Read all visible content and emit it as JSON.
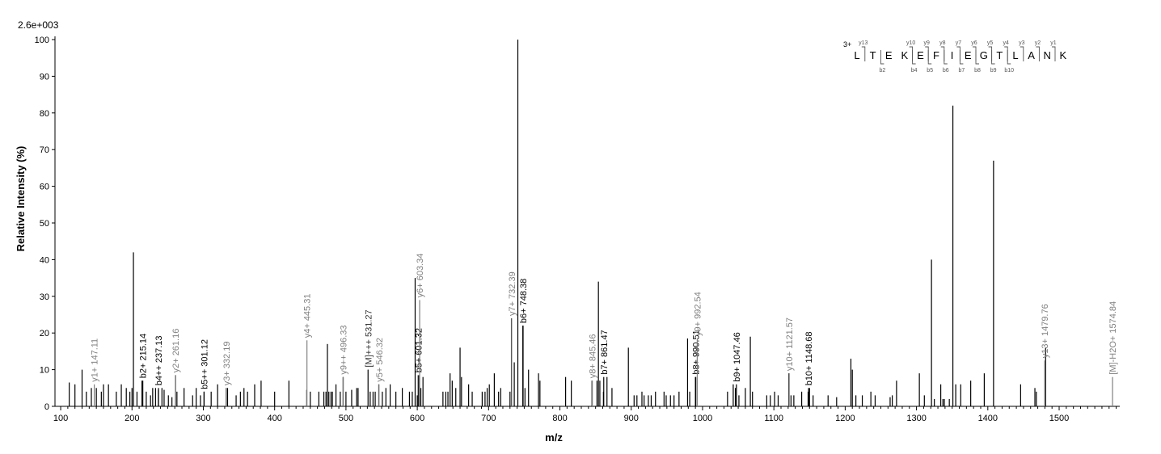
{
  "chart_data": {
    "type": "bar",
    "scale_label": "2.6e+003",
    "xlabel": "m/z",
    "ylabel": "Relative   Intensity (%)",
    "xlim": [
      92,
      1585
    ],
    "ylim": [
      0,
      100
    ],
    "x_ticks": [
      100,
      200,
      300,
      400,
      500,
      600,
      700,
      800,
      900,
      1000,
      1100,
      1200,
      1300,
      1400,
      1500
    ],
    "y_ticks": [
      0,
      10,
      20,
      30,
      40,
      50,
      60,
      70,
      80,
      90,
      100
    ],
    "peaks": [
      [
        112,
        6.5
      ],
      [
        120,
        6
      ],
      [
        130,
        10
      ],
      [
        136,
        4
      ],
      [
        143,
        5
      ],
      [
        150,
        5
      ],
      [
        157,
        4
      ],
      [
        160,
        6
      ],
      [
        167,
        6
      ],
      [
        178,
        4
      ],
      [
        185,
        6
      ],
      [
        192,
        5
      ],
      [
        197,
        4
      ],
      [
        200,
        5
      ],
      [
        202,
        42
      ],
      [
        207,
        4
      ],
      [
        214,
        7
      ],
      [
        220,
        4
      ],
      [
        226,
        3
      ],
      [
        229,
        5
      ],
      [
        233,
        5
      ],
      [
        237,
        4.5
      ],
      [
        242,
        5
      ],
      [
        245,
        4.5
      ],
      [
        251,
        3
      ],
      [
        256,
        2.5
      ],
      [
        261,
        8.5
      ],
      [
        263,
        4
      ],
      [
        273,
        5
      ],
      [
        285,
        3
      ],
      [
        290,
        5
      ],
      [
        296,
        3
      ],
      [
        301,
        4
      ],
      [
        311,
        4
      ],
      [
        320,
        6
      ],
      [
        332,
        5
      ],
      [
        334,
        5
      ],
      [
        346,
        3
      ],
      [
        352,
        4
      ],
      [
        357,
        5
      ],
      [
        362,
        4
      ],
      [
        372,
        6
      ],
      [
        381,
        7
      ],
      [
        400,
        4
      ],
      [
        420,
        7
      ],
      [
        445,
        4.5
      ],
      [
        450,
        4
      ],
      [
        462,
        4
      ],
      [
        469,
        4
      ],
      [
        472,
        4
      ],
      [
        474,
        17
      ],
      [
        476,
        4
      ],
      [
        479,
        4
      ],
      [
        481,
        4
      ],
      [
        486,
        6
      ],
      [
        492,
        4
      ],
      [
        496,
        8
      ],
      [
        500,
        4
      ],
      [
        508,
        4.5
      ],
      [
        515,
        5
      ],
      [
        517,
        5
      ],
      [
        531,
        10
      ],
      [
        534,
        4
      ],
      [
        538,
        4
      ],
      [
        541,
        4
      ],
      [
        546,
        6
      ],
      [
        551,
        4
      ],
      [
        556,
        5
      ],
      [
        562,
        6
      ],
      [
        570,
        4
      ],
      [
        579,
        5
      ],
      [
        589,
        4
      ],
      [
        593,
        4
      ],
      [
        597,
        35
      ],
      [
        600,
        3
      ],
      [
        603,
        8.5
      ],
      [
        605,
        5
      ],
      [
        608,
        8
      ],
      [
        636,
        4
      ],
      [
        640,
        4
      ],
      [
        643,
        4
      ],
      [
        646,
        9
      ],
      [
        649,
        7
      ],
      [
        654,
        5
      ],
      [
        660,
        16
      ],
      [
        662,
        8
      ],
      [
        672,
        6
      ],
      [
        677,
        4
      ],
      [
        691,
        4
      ],
      [
        695,
        4
      ],
      [
        698,
        5
      ],
      [
        701,
        6
      ],
      [
        708,
        9
      ],
      [
        714,
        4
      ],
      [
        717,
        5
      ],
      [
        730,
        4
      ],
      [
        732,
        24
      ],
      [
        736,
        12
      ],
      [
        741,
        100
      ],
      [
        748,
        22
      ],
      [
        751,
        5
      ],
      [
        756,
        10
      ],
      [
        770,
        9
      ],
      [
        772,
        7
      ],
      [
        808,
        8
      ],
      [
        816,
        7
      ],
      [
        845,
        7
      ],
      [
        852,
        7
      ],
      [
        854,
        34
      ],
      [
        856,
        7
      ],
      [
        861,
        4
      ],
      [
        866,
        8
      ],
      [
        873,
        5
      ],
      [
        896,
        16
      ],
      [
        904,
        3
      ],
      [
        908,
        3
      ],
      [
        915,
        4
      ],
      [
        918,
        3
      ],
      [
        924,
        3
      ],
      [
        928,
        3
      ],
      [
        934,
        4
      ],
      [
        946,
        4
      ],
      [
        949,
        3
      ],
      [
        955,
        3
      ],
      [
        960,
        3
      ],
      [
        967,
        4
      ],
      [
        979,
        18.5
      ],
      [
        982,
        4
      ],
      [
        990,
        8
      ],
      [
        1035,
        4
      ],
      [
        1043,
        6
      ],
      [
        1046,
        5
      ],
      [
        1051,
        3
      ],
      [
        1060,
        5
      ],
      [
        1067,
        19
      ],
      [
        1070,
        4
      ],
      [
        1090,
        3
      ],
      [
        1095,
        3
      ],
      [
        1101,
        4
      ],
      [
        1106,
        3
      ],
      [
        1121,
        9
      ],
      [
        1124,
        3
      ],
      [
        1128,
        3
      ],
      [
        1139,
        4
      ],
      [
        1148,
        4
      ],
      [
        1150,
        5
      ],
      [
        1155,
        3
      ],
      [
        1176,
        3
      ],
      [
        1188,
        2.5
      ],
      [
        1208,
        13
      ],
      [
        1210,
        10
      ],
      [
        1215,
        3
      ],
      [
        1224,
        3
      ],
      [
        1236,
        4
      ],
      [
        1242,
        3
      ],
      [
        1263,
        2.5
      ],
      [
        1266,
        3
      ],
      [
        1272,
        7
      ],
      [
        1304,
        9
      ],
      [
        1311,
        3
      ],
      [
        1321,
        40
      ],
      [
        1325,
        2
      ],
      [
        1334,
        6
      ],
      [
        1337,
        2
      ],
      [
        1339,
        2
      ],
      [
        1346,
        2
      ],
      [
        1351,
        82
      ],
      [
        1355,
        6
      ],
      [
        1362,
        6
      ],
      [
        1376,
        7
      ],
      [
        1395,
        9
      ],
      [
        1408,
        67
      ],
      [
        1446,
        6
      ],
      [
        1466,
        5
      ],
      [
        1468,
        4
      ],
      [
        1481,
        16
      ]
    ],
    "annotations": [
      {
        "x": 147.11,
        "y": 6,
        "label": "y1+ 147.11",
        "ion": "y"
      },
      {
        "x": 215.14,
        "y": 7,
        "label": "b2+ 215.14",
        "ion": "b"
      },
      {
        "x": 237.13,
        "y": 5,
        "label": "b4++ 237.13",
        "ion": "b"
      },
      {
        "x": 261.16,
        "y": 8.5,
        "label": "y2+ 261.16",
        "ion": "y"
      },
      {
        "x": 301.12,
        "y": 4,
        "label": "b5++ 301.12",
        "ion": "b"
      },
      {
        "x": 332.19,
        "y": 5,
        "label": "y3+ 332.19",
        "ion": "y"
      },
      {
        "x": 445.31,
        "y": 18,
        "label": "y4+ 445.31",
        "ion": "y"
      },
      {
        "x": 496.33,
        "y": 8,
        "label": "y9++ 496.33",
        "ion": "y"
      },
      {
        "x": 531.27,
        "y": 10,
        "label": "[M]+++ 531.27",
        "ion": "m"
      },
      {
        "x": 546.32,
        "y": 6,
        "label": "y5+ 546.32",
        "ion": "y"
      },
      {
        "x": 601.32,
        "y": 8.5,
        "label": "b5+ 601.32",
        "ion": "b"
      },
      {
        "x": 603.34,
        "y": 29,
        "label": "y6+ 603.34",
        "ion": "y"
      },
      {
        "x": 732.39,
        "y": 24,
        "label": "y7+ 732.39",
        "ion": "y"
      },
      {
        "x": 748.38,
        "y": 22,
        "label": "b6+ 748.38",
        "ion": "b"
      },
      {
        "x": 845.46,
        "y": 7,
        "label": "y8+ 845.46",
        "ion": "y"
      },
      {
        "x": 861.47,
        "y": 8,
        "label": "b7+ 861.47",
        "ion": "b"
      },
      {
        "x": 990.51,
        "y": 8,
        "label": "b8+ 990.51",
        "ion": "b"
      },
      {
        "x": 992.54,
        "y": 18.5,
        "label": "y9+ 992.54",
        "ion": "y"
      },
      {
        "x": 1047.46,
        "y": 6,
        "label": "b9+ 1047.46",
        "ion": "b"
      },
      {
        "x": 1121.57,
        "y": 9,
        "label": "y10+ 1121.57",
        "ion": "y"
      },
      {
        "x": 1148.68,
        "y": 5,
        "label": "b10+ 1148.68",
        "ion": "b"
      },
      {
        "x": 1479.76,
        "y": 12.5,
        "label": "y13+ 1479.76",
        "ion": "y"
      },
      {
        "x": 1574.84,
        "y": 8,
        "label": "[M]-H2O+ 1574.84",
        "ion": "y"
      }
    ]
  },
  "sequence": {
    "charge": "3+",
    "residues": [
      "L",
      "T",
      "E",
      "K",
      "E",
      "F",
      "I",
      "E",
      "G",
      "T",
      "L",
      "A",
      "N",
      "K"
    ],
    "y_ions": [
      {
        "label": "y13",
        "after": 0
      },
      {
        "label": "y10",
        "after": 3
      },
      {
        "label": "y9",
        "after": 4
      },
      {
        "label": "y8",
        "after": 5
      },
      {
        "label": "y7",
        "after": 6
      },
      {
        "label": "y6",
        "after": 7
      },
      {
        "label": "y5",
        "after": 8
      },
      {
        "label": "y4",
        "after": 9
      },
      {
        "label": "y3",
        "after": 10
      },
      {
        "label": "y2",
        "after": 11
      },
      {
        "label": "y1",
        "after": 12
      }
    ],
    "b_ions": [
      {
        "label": "b2",
        "after": 1
      },
      {
        "label": "b4",
        "after": 3
      },
      {
        "label": "b5",
        "after": 4
      },
      {
        "label": "b6",
        "after": 5
      },
      {
        "label": "b7",
        "after": 6
      },
      {
        "label": "b8",
        "after": 7
      },
      {
        "label": "b9",
        "after": 8
      },
      {
        "label": "b10",
        "after": 9
      }
    ]
  },
  "colors": {
    "y_ion": "#808080",
    "b_ion": "#000000",
    "peak": "#000000",
    "axis": "#000000"
  }
}
